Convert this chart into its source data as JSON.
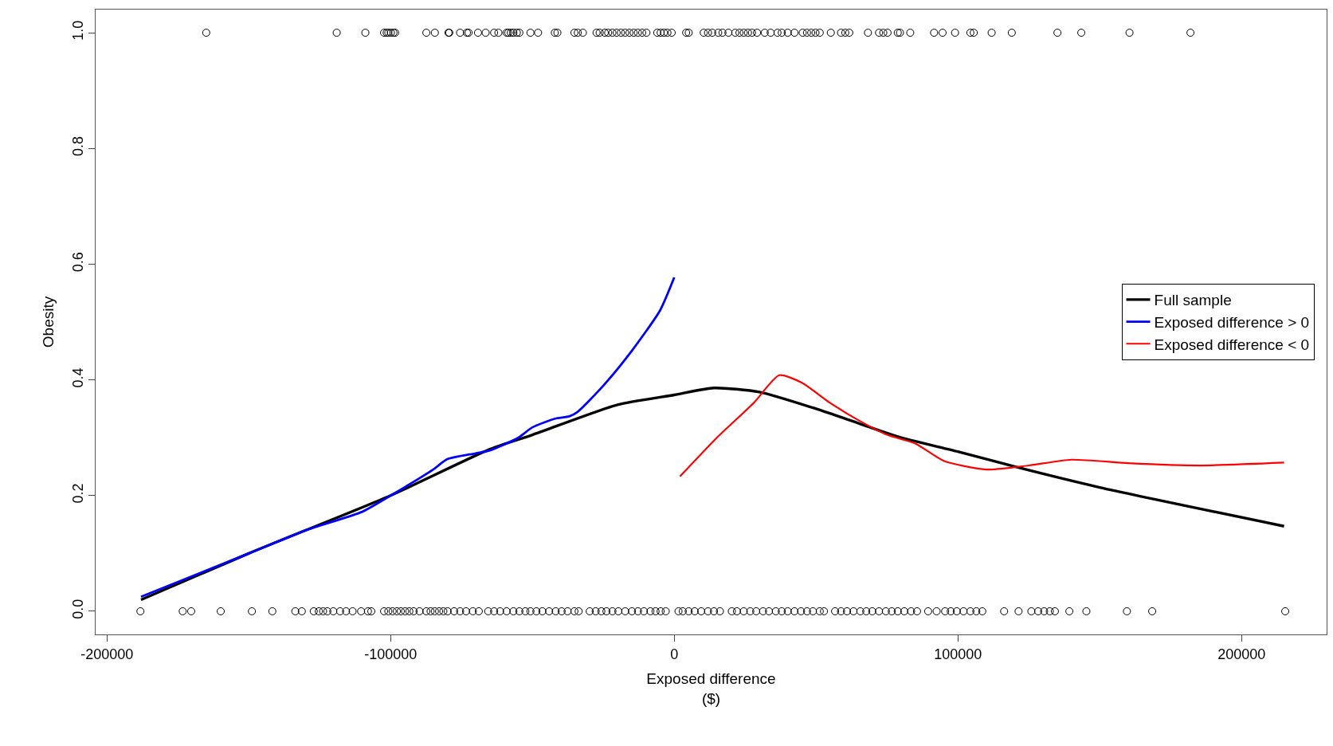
{
  "chart_data": {
    "type": "scatter",
    "xlabel": "Exposed difference\n($)",
    "ylabel": "Obesity",
    "xlim": [
      -204000,
      230000
    ],
    "ylim": [
      -0.04,
      1.04
    ],
    "xticks": [
      -200000,
      -100000,
      0,
      100000,
      200000
    ],
    "yticks": [
      {
        "value": 0,
        "label": "0.0"
      },
      0.2,
      0.4,
      0.6,
      0.8,
      {
        "value": 1,
        "label": "1.0"
      }
    ],
    "legend": "right",
    "series": [
      {
        "color": "#000000",
        "marker": "circle",
        "x": [
          -165000,
          -119000,
          -108900,
          -102300,
          -101400,
          -100800,
          -99900,
          -99000,
          -98400,
          -87400,
          -84400,
          -79600,
          -79300,
          -75500,
          -73100,
          -72500,
          -69200,
          -66500,
          -63500,
          -62000,
          -59100,
          -58500,
          -57600,
          -56700,
          -55500,
          -54600,
          -50700,
          -48000,
          -42100,
          -41200,
          -35200,
          -34000,
          -32200,
          -27400,
          -26300,
          -24500,
          -23300,
          -21800,
          -20300,
          -18800,
          -17300,
          -15800,
          -14300,
          -12800,
          -11300,
          -9800,
          -6000,
          -4800,
          -3600,
          -2400,
          -900,
          4200,
          5100,
          10400,
          11900,
          13400,
          15500,
          17000,
          19100,
          21500,
          23000,
          24500,
          26000,
          27400,
          29200,
          31900,
          34000,
          36400,
          37900,
          40000,
          42400,
          45300,
          46800,
          48300,
          49800,
          51300,
          55200,
          58800,
          60300,
          61700,
          68300,
          72200,
          73700,
          75200,
          78800,
          79600,
          83200,
          91600,
          94600,
          99000,
          104400,
          105600,
          111900,
          119000,
          135100,
          143500,
          160500,
          182000
        ],
        "values": [
          1,
          1,
          1,
          1,
          1,
          1,
          1,
          1,
          1,
          1,
          1,
          1,
          1,
          1,
          1,
          1,
          1,
          1,
          1,
          1,
          1,
          1,
          1,
          1,
          1,
          1,
          1,
          1,
          1,
          1,
          1,
          1,
          1,
          1,
          1,
          1,
          1,
          1,
          1,
          1,
          1,
          1,
          1,
          1,
          1,
          1,
          1,
          1,
          1,
          1,
          1,
          1,
          1,
          1,
          1,
          1,
          1,
          1,
          1,
          1,
          1,
          1,
          1,
          1,
          1,
          1,
          1,
          1,
          1,
          1,
          1,
          1,
          1,
          1,
          1,
          1,
          1,
          1,
          1,
          1,
          1,
          1,
          1,
          1,
          1,
          1,
          1,
          1,
          1,
          1,
          1,
          1,
          1,
          1,
          1,
          1,
          1,
          1
        ]
      },
      {
        "color": "#000000",
        "marker": "circle",
        "x": [
          -188200,
          -173300,
          -170300,
          -159900,
          -148900,
          -141700,
          -133600,
          -131300,
          -127100,
          -125300,
          -123800,
          -122300,
          -120200,
          -117800,
          -115700,
          -113400,
          -110400,
          -108000,
          -106800,
          -102300,
          -100800,
          -99300,
          -97800,
          -96400,
          -94900,
          -93400,
          -91900,
          -89800,
          -87400,
          -85900,
          -84400,
          -82900,
          -81400,
          -79900,
          -77600,
          -75500,
          -73400,
          -71000,
          -68900,
          -65600,
          -63500,
          -61400,
          -59100,
          -56700,
          -54600,
          -52500,
          -50700,
          -48600,
          -46500,
          -44100,
          -41800,
          -39700,
          -37600,
          -35200,
          -33700,
          -29800,
          -27700,
          -25700,
          -23900,
          -21800,
          -19700,
          -17300,
          -14900,
          -12800,
          -10700,
          -8400,
          -6600,
          -4800,
          -3000,
          1500,
          3000,
          5100,
          7200,
          9500,
          11900,
          14000,
          16100,
          20300,
          22100,
          24500,
          26800,
          28900,
          31300,
          33400,
          35800,
          37900,
          40000,
          42400,
          44700,
          46800,
          48900,
          51300,
          52800,
          56700,
          58800,
          60900,
          63200,
          65600,
          67700,
          69800,
          72200,
          74600,
          76700,
          78800,
          81100,
          83500,
          85600,
          89500,
          92500,
          95500,
          97500,
          99600,
          102000,
          104400,
          106500,
          108600,
          116300,
          121400,
          125900,
          128300,
          130400,
          132400,
          134200,
          139300,
          145300,
          159600,
          168500,
          215400
        ],
        "values": [
          0,
          0,
          0,
          0,
          0,
          0,
          0,
          0,
          0,
          0,
          0,
          0,
          0,
          0,
          0,
          0,
          0,
          0,
          0,
          0,
          0,
          0,
          0,
          0,
          0,
          0,
          0,
          0,
          0,
          0,
          0,
          0,
          0,
          0,
          0,
          0,
          0,
          0,
          0,
          0,
          0,
          0,
          0,
          0,
          0,
          0,
          0,
          0,
          0,
          0,
          0,
          0,
          0,
          0,
          0,
          0,
          0,
          0,
          0,
          0,
          0,
          0,
          0,
          0,
          0,
          0,
          0,
          0,
          0,
          0,
          0,
          0,
          0,
          0,
          0,
          0,
          0,
          0,
          0,
          0,
          0,
          0,
          0,
          0,
          0,
          0,
          0,
          0,
          0,
          0,
          0,
          0,
          0,
          0,
          0,
          0,
          0,
          0,
          0,
          0,
          0,
          0,
          0,
          0,
          0,
          0,
          0,
          0,
          0,
          0,
          0,
          0,
          0,
          0,
          0,
          0,
          0,
          0,
          0,
          0,
          0,
          0,
          0,
          0,
          0,
          0,
          0,
          0
        ]
      },
      {
        "type": "line",
        "name": "Full sample",
        "color": "#000000",
        "marker": "none",
        "x": [
          -188000,
          -150000,
          -100000,
          -65000,
          -50000,
          -20000,
          0,
          14000,
          30000,
          50000,
          65000,
          80000,
          100000,
          120000,
          150000,
          215000
        ],
        "values": [
          0.02,
          0.1,
          0.2,
          0.28,
          0.305,
          0.357,
          0.374,
          0.386,
          0.379,
          0.35,
          0.325,
          0.3,
          0.276,
          0.25,
          0.214,
          0.147
        ]
      },
      {
        "type": "line",
        "name": "Exposed difference > 0",
        "color": "#0000ff",
        "marker": "none",
        "x": [
          -188000,
          -150000,
          -130000,
          -110000,
          -100000,
          -85000,
          -80000,
          -70000,
          -65000,
          -55000,
          -50000,
          -42000,
          -37000,
          -34000,
          -25000,
          -15000,
          -5000,
          0
        ],
        "values": [
          0.025,
          0.1,
          0.14,
          0.172,
          0.2,
          0.245,
          0.263,
          0.273,
          0.278,
          0.3,
          0.318,
          0.333,
          0.337,
          0.345,
          0.39,
          0.45,
          0.52,
          0.577
        ]
      },
      {
        "type": "line",
        "name": "Exposed difference < 0",
        "color": "#ff0000",
        "marker": "none",
        "x": [
          2000,
          15000,
          28000,
          37000,
          45000,
          55000,
          65000,
          75000,
          85000,
          95000,
          110000,
          125000,
          140000,
          160000,
          185000,
          215000
        ],
        "values": [
          0.233,
          0.3,
          0.36,
          0.408,
          0.395,
          0.36,
          0.33,
          0.305,
          0.29,
          0.26,
          0.245,
          0.252,
          0.262,
          0.256,
          0.252,
          0.257
        ]
      }
    ]
  }
}
